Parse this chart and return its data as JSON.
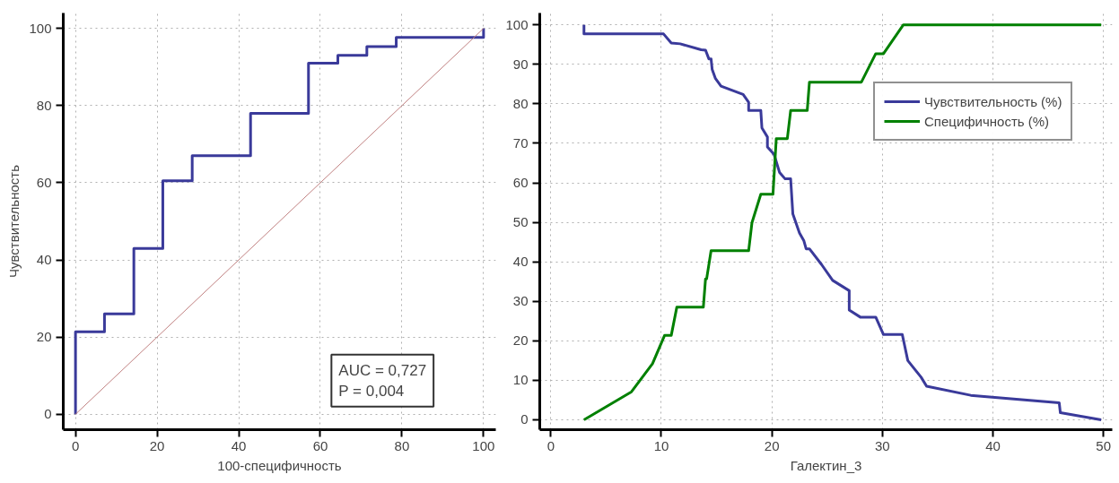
{
  "chart_data": [
    {
      "type": "line",
      "xlabel": "100-специфичность",
      "ylabel": "Чувствительность",
      "xlim": [
        -3,
        103
      ],
      "ylim": [
        -4,
        104
      ],
      "xticks": [
        0,
        20,
        40,
        60,
        80,
        100
      ],
      "yticks": [
        0,
        20,
        40,
        60,
        80,
        100
      ],
      "grid": true,
      "legend": false,
      "annotations": [
        "AUC = 0,727",
        "P = 0,004"
      ],
      "series": [
        {
          "color": "#3a3a9a",
          "x": [
            0,
            0,
            7.1,
            7.1,
            14.3,
            14.3,
            21.4,
            21.4,
            28.6,
            28.6,
            42.9,
            42.9,
            57.1,
            57.1,
            64.3,
            64.3,
            71.4,
            71.4,
            78.6,
            78.6,
            100,
            100
          ],
          "values": [
            0,
            21.4,
            21.4,
            26,
            26,
            43,
            43,
            60.5,
            60.5,
            67,
            67,
            78,
            78,
            91,
            91,
            93,
            93,
            95.3,
            95.3,
            97.7,
            97.7,
            100
          ]
        },
        {
          "color": "#c08080",
          "line_style": "solid",
          "x": [
            0,
            100
          ],
          "values": [
            0,
            100
          ]
        }
      ]
    },
    {
      "type": "line",
      "xlabel": "Галектин_3",
      "xlim": [
        -1,
        50.8
      ],
      "ylim": [
        -2.5,
        103
      ],
      "xticks": [
        0,
        10,
        20,
        30,
        40,
        50
      ],
      "yticks": [
        0,
        10,
        20,
        30,
        40,
        50,
        60,
        70,
        80,
        90,
        100
      ],
      "grid": true,
      "legend": "top right",
      "series": [
        {
          "name": "Чувствительность (%)",
          "color": "#3a3a9a",
          "x": [
            3,
            3,
            10.2,
            10.9,
            11.7,
            13.6,
            14.0,
            14.3,
            14.5,
            14.6,
            14.9,
            15.4,
            17.4,
            17.9,
            17.9,
            19.0,
            19.1,
            19.6,
            19.6,
            20.2,
            20.7,
            21.2,
            21.7,
            21.9,
            22.5,
            22.9,
            23.1,
            23.4,
            24.5,
            25.5,
            27.0,
            27.0,
            28.0,
            29.4,
            30.1,
            31.8,
            32.3,
            33.5,
            34.0,
            38.0,
            46.0,
            46.1,
            49.8
          ],
          "values": [
            100,
            97.7,
            97.7,
            95.4,
            95.2,
            93.7,
            93.6,
            91.4,
            91.4,
            88.7,
            86.4,
            84.5,
            82.4,
            80.4,
            78.3,
            78.3,
            73.9,
            71.6,
            69.1,
            67.2,
            62.6,
            61,
            61,
            52.1,
            47.3,
            45.3,
            43.3,
            43.3,
            39.3,
            35.3,
            32.7,
            27.8,
            26,
            26,
            21.6,
            21.6,
            15,
            10.8,
            8.5,
            6.2,
            4.3,
            1.8,
            0
          ]
        },
        {
          "name": "Специфичность (%)",
          "color": "#008000",
          "x": [
            3.0,
            7.3,
            9.2,
            10.3,
            10.9,
            11.4,
            13.8,
            14.0,
            14.1,
            14.5,
            17.9,
            18.2,
            19.0,
            20.1,
            20.4,
            21.4,
            21.7,
            23.2,
            23.4,
            28.1,
            29.4,
            30.1,
            31.9,
            49.8
          ],
          "values": [
            0,
            7.1,
            14.2,
            21.4,
            21.4,
            28.5,
            28.5,
            35.7,
            35.7,
            42.8,
            42.8,
            49.9,
            57.1,
            57.1,
            71.2,
            71.2,
            78.3,
            78.3,
            85.5,
            85.5,
            92.7,
            92.7,
            100,
            100
          ]
        }
      ]
    }
  ]
}
